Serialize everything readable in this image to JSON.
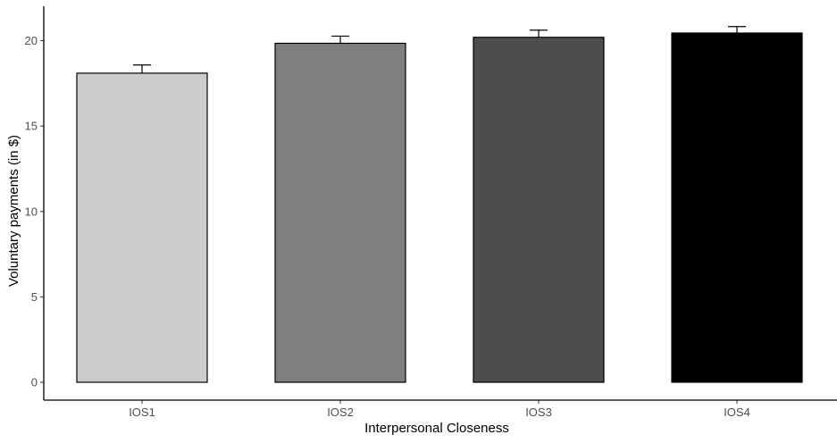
{
  "chart_data": {
    "type": "bar",
    "categories": [
      "IOS1",
      "IOS2",
      "IOS3",
      "IOS4"
    ],
    "values": [
      18.1,
      19.85,
      20.2,
      20.45
    ],
    "error": [
      0.48,
      0.42,
      0.42,
      0.38
    ],
    "colors": [
      "#cccccc",
      "#7f7f7f",
      "#4d4d4d",
      "#000000"
    ],
    "xlabel": "Interpersonal Closeness",
    "ylabel": "Voluntary payments (in $)",
    "ylim": [
      0,
      21.5
    ],
    "yticks": [
      0,
      5,
      10,
      15,
      20
    ],
    "ytick_labels": [
      "0",
      "5",
      "10",
      "15",
      "20"
    ],
    "grid": false
  }
}
